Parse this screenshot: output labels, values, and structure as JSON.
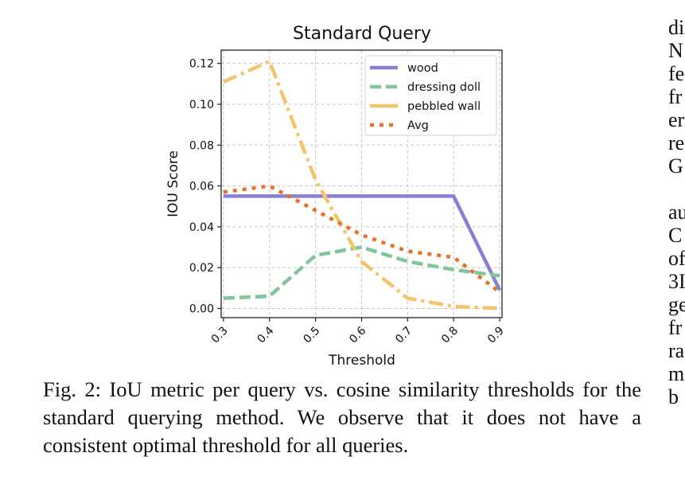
{
  "chart_data": {
    "type": "line",
    "title": "Standard Query",
    "xlabel": "Threshold",
    "ylabel": "IOU Score",
    "x": [
      0.3,
      0.4,
      0.5,
      0.6,
      0.7,
      0.8,
      0.9
    ],
    "x_tick_labels": [
      "0.3",
      "0.4",
      "0.5",
      "0.6",
      "0.7",
      "0.8",
      "0.9"
    ],
    "y_ticks": [
      0.0,
      0.02,
      0.04,
      0.06,
      0.08,
      0.1,
      0.12
    ],
    "y_tick_labels": [
      "0.00",
      "0.02",
      "0.04",
      "0.06",
      "0.08",
      "0.10",
      "0.12"
    ],
    "xlim": [
      0.295,
      0.905
    ],
    "ylim": [
      -0.0045,
      0.1265
    ],
    "grid": true,
    "legend_position": "top-right",
    "series": [
      {
        "name": "wood",
        "color": "#8a7fd6",
        "style": "solid",
        "values": [
          0.055,
          0.055,
          0.055,
          0.055,
          0.055,
          0.055,
          0.009
        ]
      },
      {
        "name": "dressing doll",
        "color": "#7fc69a",
        "style": "dashed",
        "values": [
          0.005,
          0.006,
          0.026,
          0.03,
          0.023,
          0.019,
          0.016
        ]
      },
      {
        "name": "pebbled wall",
        "color": "#f5c46a",
        "style": "dashdot",
        "values": [
          0.111,
          0.121,
          0.063,
          0.023,
          0.005,
          0.001,
          0.0
        ]
      },
      {
        "name": "Avg",
        "color": "#e8712a",
        "style": "dotted",
        "values": [
          0.057,
          0.06,
          0.048,
          0.036,
          0.028,
          0.025,
          0.008
        ]
      }
    ]
  },
  "caption": "Fig. 2: IoU metric per query vs. cosine similarity thresholds for the standard querying method. We observe that it does not have a consistent optimal threshold for all queries.",
  "right_column": {
    "block1": [
      "di",
      "N",
      "fe",
      "fr",
      "er",
      "re",
      "G"
    ],
    "block2": [
      "au",
      "C",
      "of",
      "3I",
      "ge",
      "fr",
      "ra",
      "m",
      "b"
    ]
  }
}
